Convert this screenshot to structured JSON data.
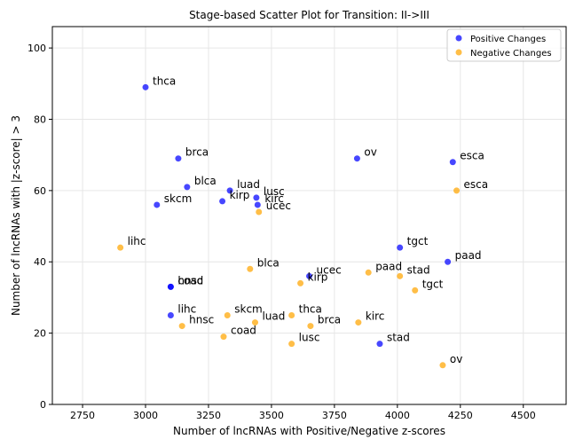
{
  "chart_data": {
    "type": "scatter",
    "title": "Stage-based Scatter Plot for Transition: II->III",
    "xlabel": "Number of lncRNAs with Positive/Negative z-scores",
    "ylabel": "Number of lncRNAs with |z-score| > 3",
    "xlim": [
      2630,
      4670
    ],
    "ylim": [
      0,
      106
    ],
    "xticks": [
      2750,
      3000,
      3250,
      3500,
      3750,
      4000,
      4250,
      4500
    ],
    "yticks": [
      0,
      20,
      40,
      60,
      80,
      100
    ],
    "grid": true,
    "legend_position": "top-right",
    "colors": {
      "positive": "#0000ff",
      "negative": "#ffa500"
    },
    "series": [
      {
        "name": "Positive Changes",
        "points": [
          {
            "label": "thca",
            "x": 3000,
            "y": 89
          },
          {
            "label": "brca",
            "x": 3130,
            "y": 69
          },
          {
            "label": "blca",
            "x": 3165,
            "y": 61
          },
          {
            "label": "skcm",
            "x": 3045,
            "y": 56
          },
          {
            "label": "luad",
            "x": 3335,
            "y": 60
          },
          {
            "label": "kirp",
            "x": 3305,
            "y": 57
          },
          {
            "label": "lusc",
            "x": 3440,
            "y": 58
          },
          {
            "label": "kirc",
            "x": 3445,
            "y": 56
          },
          {
            "label": "ov",
            "x": 3840,
            "y": 69
          },
          {
            "label": "esca",
            "x": 4220,
            "y": 68
          },
          {
            "label": "hnsc",
            "x": 3100,
            "y": 33
          },
          {
            "label": "coad",
            "x": 3100,
            "y": 33
          },
          {
            "label": "lihc",
            "x": 3100,
            "y": 25
          },
          {
            "label": "tgct",
            "x": 4010,
            "y": 44
          },
          {
            "label": "paad",
            "x": 4200,
            "y": 40
          },
          {
            "label": "ucec",
            "x": 3650,
            "y": 36
          },
          {
            "label": "stad",
            "x": 3930,
            "y": 17
          }
        ]
      },
      {
        "name": "Negative Changes",
        "points": [
          {
            "label": "lihc",
            "x": 2900,
            "y": 44
          },
          {
            "label": "ucec",
            "x": 3450,
            "y": 54
          },
          {
            "label": "esca",
            "x": 4235,
            "y": 60
          },
          {
            "label": "blca",
            "x": 3415,
            "y": 38
          },
          {
            "label": "kirp",
            "x": 3615,
            "y": 34
          },
          {
            "label": "paad",
            "x": 3885,
            "y": 37
          },
          {
            "label": "stad",
            "x": 4010,
            "y": 36
          },
          {
            "label": "tgct",
            "x": 4070,
            "y": 32
          },
          {
            "label": "hnsc",
            "x": 3145,
            "y": 22
          },
          {
            "label": "skcm",
            "x": 3325,
            "y": 25
          },
          {
            "label": "coad",
            "x": 3310,
            "y": 19
          },
          {
            "label": "luad",
            "x": 3435,
            "y": 23
          },
          {
            "label": "thca",
            "x": 3580,
            "y": 25
          },
          {
            "label": "brca",
            "x": 3655,
            "y": 22
          },
          {
            "label": "lusc",
            "x": 3580,
            "y": 17
          },
          {
            "label": "kirc",
            "x": 3845,
            "y": 23
          },
          {
            "label": "ov",
            "x": 4180,
            "y": 11
          }
        ]
      }
    ]
  }
}
